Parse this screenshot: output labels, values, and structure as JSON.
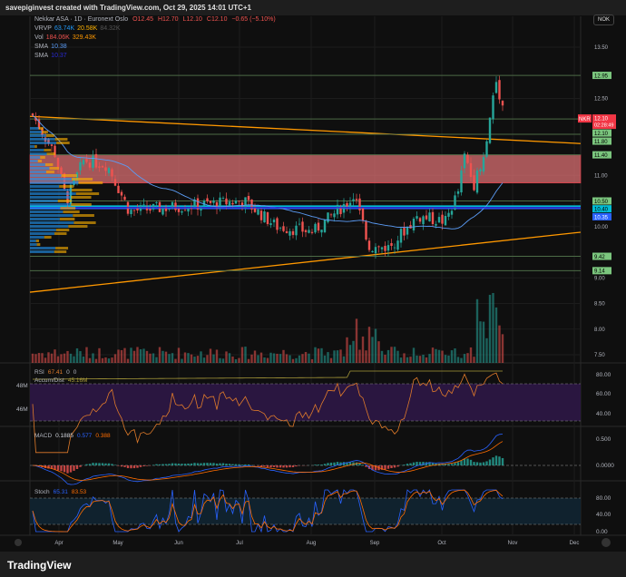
{
  "header": {
    "attribution": "savepiginvest created with TradingView.com, Oct 29, 2025 14:01 UTC+1"
  },
  "legend": {
    "symbol": "Nekkar ASA · 1D · Euronext Oslo",
    "ohlc": {
      "o": "O12.45",
      "h": "H12.70",
      "l": "L12.10",
      "c": "C12.10",
      "chg": "−0.65 (−5.10%)"
    },
    "vrvp": {
      "label": "VRVP",
      "v1": "63.74K",
      "v2": "20.58K",
      "v3": "84.32K"
    },
    "vol": {
      "label": "Vol",
      "v1": "184.06K",
      "v2": "329.43K"
    },
    "sma1": {
      "label": "SMA",
      "value": "10.38"
    },
    "sma2": {
      "label": "SMA",
      "value": "10.37"
    }
  },
  "currency": "NOK",
  "ticker_tag": {
    "symbol": "NKR",
    "price": "12.10",
    "countdown": "02:28:49"
  },
  "logo": "TradingView",
  "panes": {
    "rsi": {
      "label": "RSI",
      "value": "67.41",
      "extra1": "0",
      "extra2": "0",
      "ad_label": "Accum/Dist",
      "ad_value": "45.16M",
      "ad_ticks": [
        "48M",
        "46M"
      ],
      "ticks": [
        "80.00",
        "60.00",
        "40.00"
      ]
    },
    "macd": {
      "label": "MACD",
      "v1": "0.1885",
      "v2": "0.577",
      "v3": "0.388",
      "ticks": [
        "0.500",
        "0.0000"
      ]
    },
    "stoch": {
      "label": "Stoch",
      "v1": "65.31",
      "v2": "83.53",
      "ticks": [
        "80.00",
        "40.00",
        "0.00"
      ]
    }
  },
  "colors": {
    "up": "#26a69a",
    "down": "#ef5350",
    "trendline": "#ff9800",
    "level": "#7bc67e",
    "zone": "#f77c80",
    "sma_blue": "#2962ff"
  },
  "chart_data": {
    "type": "candlestick",
    "title": "Nekkar ASA · 1D · Euronext Oslo",
    "x_ticks": [
      "Apr",
      "May",
      "Jun",
      "Jul",
      "Aug",
      "Sep",
      "Oct",
      "Nov",
      "Dec"
    ],
    "y_ticks": [
      "13.50",
      "12.50",
      "11.00",
      "10.00",
      "9.00",
      "8.50",
      "8.00",
      "7.50"
    ],
    "ylim": [
      7.3,
      13.8
    ],
    "close_approx": [
      {
        "date": "2025-03-24",
        "close": 12.2
      },
      {
        "date": "2025-04-04",
        "close": 11.4
      },
      {
        "date": "2025-04-09",
        "close": 10.5
      },
      {
        "date": "2025-04-17",
        "close": 11.3
      },
      {
        "date": "2025-04-28",
        "close": 11.2
      },
      {
        "date": "2025-05-08",
        "close": 10.3
      },
      {
        "date": "2025-06-02",
        "close": 10.4
      },
      {
        "date": "2025-06-30",
        "close": 10.5
      },
      {
        "date": "2025-07-15",
        "close": 10.0
      },
      {
        "date": "2025-08-01",
        "close": 9.9
      },
      {
        "date": "2025-08-20",
        "close": 10.6
      },
      {
        "date": "2025-08-27",
        "close": 9.6
      },
      {
        "date": "2025-09-05",
        "close": 9.6
      },
      {
        "date": "2025-09-18",
        "close": 10.2
      },
      {
        "date": "2025-10-01",
        "close": 10.1
      },
      {
        "date": "2025-10-07",
        "close": 10.7
      },
      {
        "date": "2025-10-10",
        "close": 11.4
      },
      {
        "date": "2025-10-14",
        "close": 10.8
      },
      {
        "date": "2025-10-20",
        "close": 11.6
      },
      {
        "date": "2025-10-24",
        "close": 12.9
      },
      {
        "date": "2025-10-29",
        "close": 12.1
      }
    ],
    "levels": [
      "12.95",
      "12.10",
      "11.80",
      "11.40",
      "10.50",
      "10.40",
      "10.35",
      "9.42",
      "9.14"
    ],
    "zone": [
      10.85,
      11.4
    ],
    "trendlines": [
      {
        "from": 12.15,
        "to": 11.62
      },
      {
        "from": 8.72,
        "to": 9.89
      }
    ],
    "grid": true
  }
}
